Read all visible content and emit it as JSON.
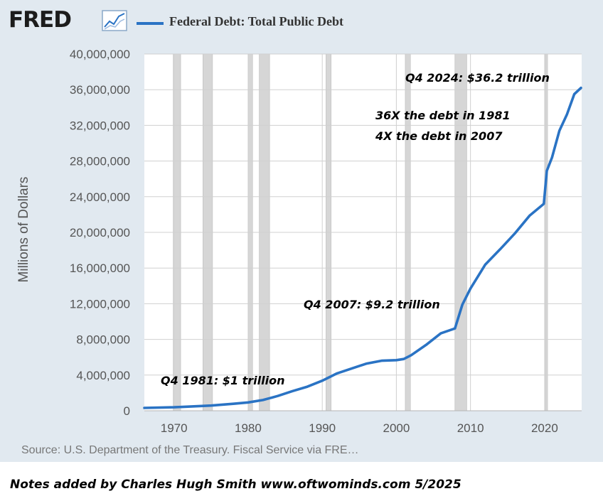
{
  "header": {
    "logo_text": "FRED",
    "logo_icon": "line-chart-icon",
    "legend_label": "Federal Debt: Total Public Debt",
    "series_color": "#2a73c4"
  },
  "chart_data": {
    "type": "line",
    "title": "",
    "ylabel": "Millions of Dollars",
    "xlabel": "",
    "xlim": [
      1966,
      2025
    ],
    "ylim": [
      0,
      40000000
    ],
    "yticks": [
      0,
      4000000,
      8000000,
      12000000,
      16000000,
      20000000,
      24000000,
      28000000,
      32000000,
      36000000,
      40000000
    ],
    "ytick_labels": [
      "0",
      "4,000,000",
      "8,000,000",
      "12,000,000",
      "16,000,000",
      "20,000,000",
      "24,000,000",
      "28,000,000",
      "32,000,000",
      "36,000,000",
      "40,000,000"
    ],
    "xticks": [
      1970,
      1980,
      1990,
      2000,
      2010,
      2020
    ],
    "xtick_labels": [
      "1970",
      "1980",
      "1990",
      "2000",
      "2010",
      "2020"
    ],
    "grid": true,
    "recessions": [
      [
        1969.9,
        1970.9
      ],
      [
        1973.9,
        1975.2
      ],
      [
        1980.0,
        1980.6
      ],
      [
        1981.5,
        1982.9
      ],
      [
        1990.5,
        1991.2
      ],
      [
        2001.2,
        2001.9
      ],
      [
        2007.9,
        2009.5
      ],
      [
        2020.1,
        2020.4
      ]
    ],
    "series": [
      {
        "name": "Federal Debt: Total Public Debt",
        "x": [
          1966,
          1970,
          1975,
          1978,
          1980,
          1982,
          1984,
          1986,
          1988,
          1990,
          1992,
          1994,
          1996,
          1998,
          2000,
          2001,
          2002,
          2004,
          2006,
          2007.9,
          2008.9,
          2010,
          2012,
          2014,
          2016,
          2018,
          2019.9,
          2020.3,
          2021,
          2022,
          2023,
          2024,
          2024.9
        ],
        "y": [
          320000,
          390000,
          580000,
          780000,
          930000,
          1200000,
          1660000,
          2210000,
          2700000,
          3370000,
          4190000,
          4750000,
          5290000,
          5610000,
          5670000,
          5800000,
          6230000,
          7380000,
          8680000,
          9230000,
          11900000,
          13700000,
          16400000,
          18100000,
          19900000,
          21900000,
          23200000,
          26900000,
          28400000,
          31400000,
          33200000,
          35500000,
          36200000
        ]
      }
    ],
    "annotations": [
      {
        "text": "Q4 1981: $1 trillion"
      },
      {
        "text": "Q4 2007: $9.2 trillion"
      },
      {
        "text": "Q4 2024: $36.2 trillion"
      },
      {
        "text": "36X the debt in 1981"
      },
      {
        "text": "4X the debt in 2007"
      }
    ]
  },
  "footer": {
    "source": "Source: U.S. Department of the Treasury. Fiscal Service via FRE…",
    "notes": "Notes added by Charles Hugh Smith  www.oftwominds.com  5/2025"
  }
}
